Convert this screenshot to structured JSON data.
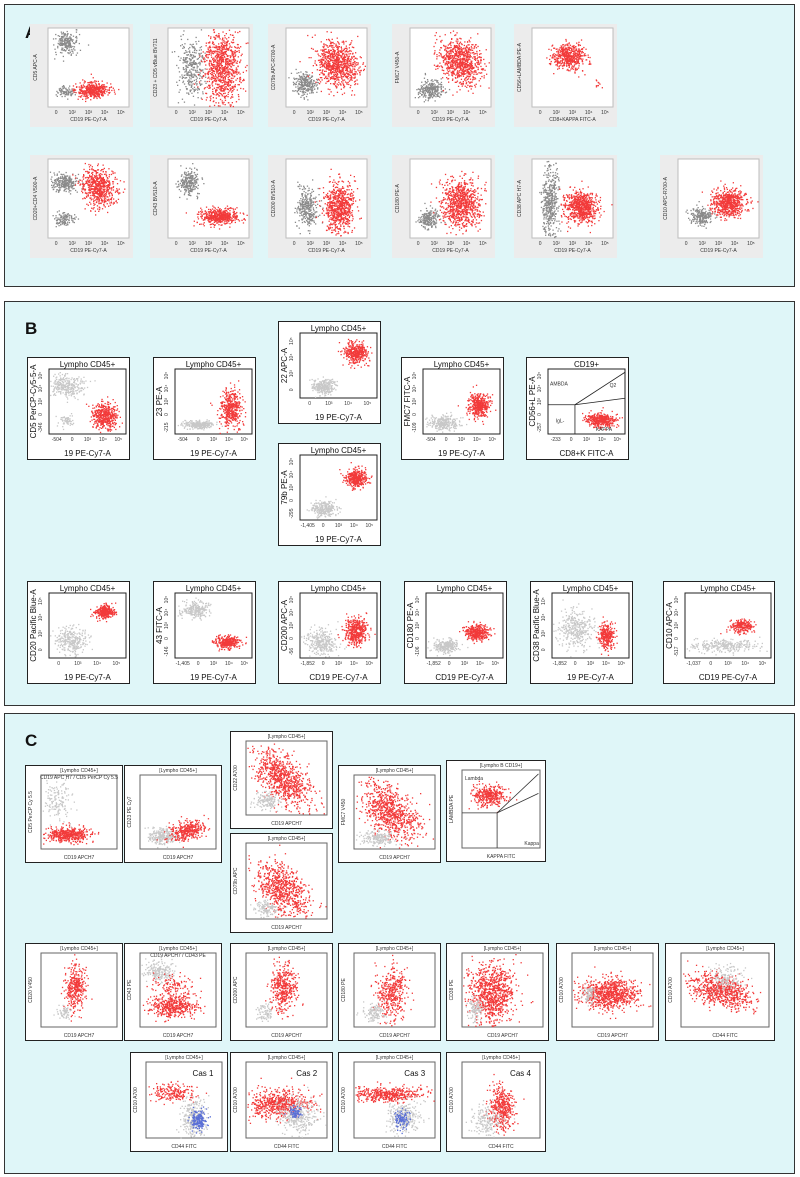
{
  "colors": {
    "positive": "#f23a3a",
    "grey": "#8a8a8a",
    "light_grey": "#c8c8c8",
    "blue": "#5a6fd6",
    "panel_bg": "#dff6f8",
    "frame": "#333333"
  },
  "panels": {
    "a": {
      "label": "A"
    },
    "b": {
      "label": "B"
    },
    "c": {
      "label": "C"
    }
  },
  "chart_data": [
    {
      "type": "scatter",
      "panel": "A",
      "ylabel": "CD5 APC-A",
      "xlabel": "CD19 PE-Cy7-A",
      "xticks": [
        "0",
        "10²",
        "10³",
        "10⁴",
        "10⁵"
      ]
    },
    {
      "type": "scatter",
      "panel": "A",
      "ylabel": "CD23 + CD5 vBlue BV711",
      "xlabel": "CD19 PE-Cy7-A",
      "xticks": [
        "0",
        "10²",
        "10³",
        "10⁴",
        "10⁵"
      ]
    },
    {
      "type": "scatter",
      "panel": "A",
      "ylabel": "CD79b APC-R700-A",
      "xlabel": "CD19 PE-Cy7-A",
      "xticks": [
        "0",
        "10²",
        "10³",
        "10⁴",
        "10⁵"
      ]
    },
    {
      "type": "scatter",
      "panel": "A",
      "ylabel": "FMC7 V450-A",
      "xlabel": "CD19 PE-Cy7-A",
      "xticks": [
        "0",
        "10²",
        "10³",
        "10⁴",
        "10⁵"
      ]
    },
    {
      "type": "scatter",
      "panel": "A",
      "ylabel": "CD56+LAMBDA PE-A",
      "xlabel": "CD8+KAPPA FITC-A",
      "xticks": [
        "0",
        "10²",
        "10³",
        "10⁴",
        "10⁵"
      ]
    },
    {
      "type": "scatter",
      "panel": "A",
      "ylabel": "CD20+CD4 V500-A",
      "xlabel": "CD19 PE-Cy7-A",
      "xticks": [
        "0",
        "10²",
        "10³",
        "10⁴",
        "10⁵"
      ]
    },
    {
      "type": "scatter",
      "panel": "A",
      "ylabel": "CD43 BV510-A",
      "xlabel": "CD19 PE-Cy7-A",
      "xticks": [
        "0",
        "10²",
        "10³",
        "10⁴",
        "10⁵"
      ]
    },
    {
      "type": "scatter",
      "panel": "A",
      "ylabel": "CD200 BV510-A",
      "xlabel": "CD19 PE-Cy7-A",
      "xticks": [
        "0",
        "10²",
        "10³",
        "10⁴",
        "10⁵"
      ]
    },
    {
      "type": "scatter",
      "panel": "A",
      "ylabel": "CD180 PE-A",
      "xlabel": "CD19 PE-Cy7-A",
      "xticks": [
        "0",
        "10²",
        "10³",
        "10⁴",
        "10⁵"
      ]
    },
    {
      "type": "scatter",
      "panel": "A",
      "ylabel": "CD38 APC H7-A",
      "xlabel": "CD19 PE-Cy7-A",
      "xticks": [
        "0",
        "10²",
        "10³",
        "10⁴",
        "10⁵"
      ]
    },
    {
      "type": "scatter",
      "panel": "A",
      "ylabel": "CD10 APC-R700-A",
      "xlabel": "CD19 PE-Cy7-A",
      "xticks": [
        "0",
        "10²",
        "10³",
        "10⁴",
        "10⁵"
      ]
    },
    {
      "type": "scatter",
      "panel": "B",
      "title": "Lympho CD45+",
      "ylabel": "CD5 PerCP-Cy5-5-A",
      "xlabel": "19 PE-Cy7-A",
      "xticks": [
        "-504",
        "0",
        "10³",
        "10⁴",
        "10⁵"
      ],
      "yticks": [
        "-346",
        "0",
        "10³",
        "10⁴",
        "10⁵"
      ]
    },
    {
      "type": "scatter",
      "panel": "B",
      "title": "Lympho CD45+",
      "ylabel": "23 PE-A",
      "xlabel": "19 PE-Cy7-A",
      "xticks": [
        "-504",
        "0",
        "10³",
        "10⁴",
        "10⁵"
      ],
      "yticks": [
        "-215",
        "0",
        "10³",
        "10⁴",
        "10⁵"
      ]
    },
    {
      "type": "scatter",
      "panel": "B",
      "title": "Lympho CD45+",
      "ylabel": "22 APC-A",
      "xlabel": "19 PE-Cy7-A",
      "xticks": [
        "0",
        "10³",
        "10⁴",
        "10⁵"
      ],
      "yticks": [
        "0",
        "10³",
        "10⁴",
        "10⁵"
      ]
    },
    {
      "type": "scatter",
      "panel": "B",
      "title": "Lympho CD45+",
      "ylabel": "79b PE-A",
      "xlabel": "19 PE-Cy7-A",
      "xticks": [
        "-1,405",
        "0",
        "10³",
        "10⁴",
        "10⁵"
      ],
      "yticks": [
        "-295",
        "0",
        "10³",
        "10⁴",
        "10⁵"
      ]
    },
    {
      "type": "scatter",
      "panel": "B",
      "title": "Lympho CD45+",
      "ylabel": "FMC7 FITC-A",
      "xlabel": "19 PE-Cy7-A",
      "xticks": [
        "-504",
        "0",
        "10³",
        "10⁴",
        "10⁵"
      ],
      "yticks": [
        "-109",
        "0",
        "10³",
        "10⁴",
        "10⁵"
      ]
    },
    {
      "type": "scatter",
      "panel": "B",
      "title": "CD19+",
      "ylabel": "CD56+L PE-A",
      "xlabel": "CD8+K FITC-A",
      "xticks": [
        "-233",
        "0",
        "10³",
        "10⁴",
        "10⁵"
      ],
      "yticks": [
        "-257",
        "0",
        "10³",
        "10⁴",
        "10⁵"
      ],
      "gates": [
        "AMBDA",
        "Q2",
        "IgL-",
        "KAPPA"
      ]
    },
    {
      "type": "scatter",
      "panel": "B",
      "title": "Lympho CD45+",
      "ylabel": "CD20 Pacific Blue-A",
      "xlabel": "19 PE-Cy7-A",
      "xticks": [
        "0",
        "10³",
        "10⁴",
        "10⁵"
      ],
      "yticks": [
        "0",
        "10³",
        "10⁴",
        "10⁵"
      ]
    },
    {
      "type": "scatter",
      "panel": "B",
      "title": "Lympho CD45+",
      "ylabel": "43 FITC-A",
      "xlabel": "19 PE-Cy7-A",
      "xticks": [
        "-1,405",
        "0",
        "10³",
        "10⁴",
        "10⁵"
      ],
      "yticks": [
        "-146",
        "0",
        "10³",
        "10⁴",
        "10⁵"
      ]
    },
    {
      "type": "scatter",
      "panel": "B",
      "title": "Lympho CD45+",
      "ylabel": "CD200 APC-A",
      "xlabel": "CD19 PE-Cy7-A",
      "xticks": [
        "-1,852",
        "0",
        "10³",
        "10⁴",
        "10⁵"
      ],
      "yticks": [
        "-56",
        "0",
        "10³",
        "10⁴",
        "10⁵"
      ]
    },
    {
      "type": "scatter",
      "panel": "B",
      "title": "Lympho CD45+",
      "ylabel": "CD180 PE-A",
      "xlabel": "CD19 PE-Cy7-A",
      "xticks": [
        "-1,852",
        "0",
        "10³",
        "10⁴",
        "10⁵"
      ],
      "yticks": [
        "-106",
        "0",
        "10³",
        "10⁴",
        "10⁵"
      ]
    },
    {
      "type": "scatter",
      "panel": "B",
      "title": "Lympho CD45+",
      "ylabel": "CD38 Pacific Blue-A",
      "xlabel": "19 PE-Cy7-A",
      "xticks": [
        "-1,852",
        "0",
        "10³",
        "10⁴",
        "10⁵"
      ],
      "yticks": [
        "0",
        "10³",
        "10⁴",
        "10⁵"
      ]
    },
    {
      "type": "scatter",
      "panel": "B",
      "title": "Lympho CD45+",
      "ylabel": "CD10 APC-A",
      "xlabel": "CD19 PE-Cy7-A",
      "xticks": [
        "-1,037",
        "0",
        "10³",
        "10⁴",
        "10⁵"
      ],
      "yticks": [
        "-517",
        "0",
        "10³",
        "10⁴",
        "10⁵"
      ]
    },
    {
      "type": "scatter",
      "panel": "C",
      "title": "[Lympho CD45+]",
      "subtitle": "CD19 APC H7 / CD5 PerCP Cy 5.5",
      "ylabel": "CD5 PerCP Cy 5.5",
      "xlabel": "CD19 APCH7"
    },
    {
      "type": "scatter",
      "panel": "C",
      "title": "[Lympho CD45+]",
      "ylabel": "CD23 PE Cy7",
      "xlabel": "CD19 APCH7"
    },
    {
      "type": "scatter",
      "panel": "C",
      "title": "[Lympho CD45+]",
      "ylabel": "CD22 A700",
      "xlabel": "CD19 APCH7"
    },
    {
      "type": "scatter",
      "panel": "C",
      "title": "[Lympho CD45+]",
      "ylabel": "CD79b APC",
      "xlabel": "CD19 APCH7"
    },
    {
      "type": "scatter",
      "panel": "C",
      "title": "[Lympho CD45+]",
      "ylabel": "FMC7 V450",
      "xlabel": "CD19 APCH7"
    },
    {
      "type": "scatter",
      "panel": "C",
      "title": "[Lympho B CD19+]",
      "ylabel": "LAMBDA PE",
      "xlabel": "KAPPA FITC",
      "gates": [
        "Lambda",
        "Kappa"
      ]
    },
    {
      "type": "scatter",
      "panel": "C",
      "title": "[Lympho CD45+]",
      "ylabel": "CD20 V450",
      "xlabel": "CD19 APCH7"
    },
    {
      "type": "scatter",
      "panel": "C",
      "title": "[Lympho CD45+]",
      "subtitle": "CD19 APCH7 / CD43 PE",
      "ylabel": "CD43 PE",
      "xlabel": "CD19 APCH7"
    },
    {
      "type": "scatter",
      "panel": "C",
      "title": "[Lympho CD45+]",
      "ylabel": "CD200 APC",
      "xlabel": "CD19 APCH7"
    },
    {
      "type": "scatter",
      "panel": "C",
      "title": "[Lympho CD45+]",
      "ylabel": "CD180 PE",
      "xlabel": "CD19 APCH7"
    },
    {
      "type": "scatter",
      "panel": "C",
      "title": "[Lympho CD45+]",
      "ylabel": "CD38 PE",
      "xlabel": "CD19 APCH7"
    },
    {
      "type": "scatter",
      "panel": "C",
      "title": "[Lympho CD45+]",
      "ylabel": "CD10 A700",
      "xlabel": "CD19 APCH7"
    },
    {
      "type": "scatter",
      "panel": "C",
      "title": "[Lympho CD45+]",
      "ylabel": "CD10 A700",
      "xlabel": "CD44 FITC"
    },
    {
      "type": "scatter",
      "panel": "C",
      "title": "[Lympho CD45+]",
      "case": "Cas 1",
      "ylabel": "CD10 A700",
      "xlabel": "CD44 FITC"
    },
    {
      "type": "scatter",
      "panel": "C",
      "title": "[Lympho CD45+]",
      "case": "Cas 2",
      "ylabel": "CD10 A700",
      "xlabel": "CD44 FITC"
    },
    {
      "type": "scatter",
      "panel": "C",
      "title": "[Lympho CD45+]",
      "case": "Cas 3",
      "ylabel": "CD10 A700",
      "xlabel": "CD44 FITC"
    },
    {
      "type": "scatter",
      "panel": "C",
      "title": "[Lympho CD45+]",
      "case": "Cas 4",
      "ylabel": "CD10 A700",
      "xlabel": "CD44 FITC"
    }
  ]
}
